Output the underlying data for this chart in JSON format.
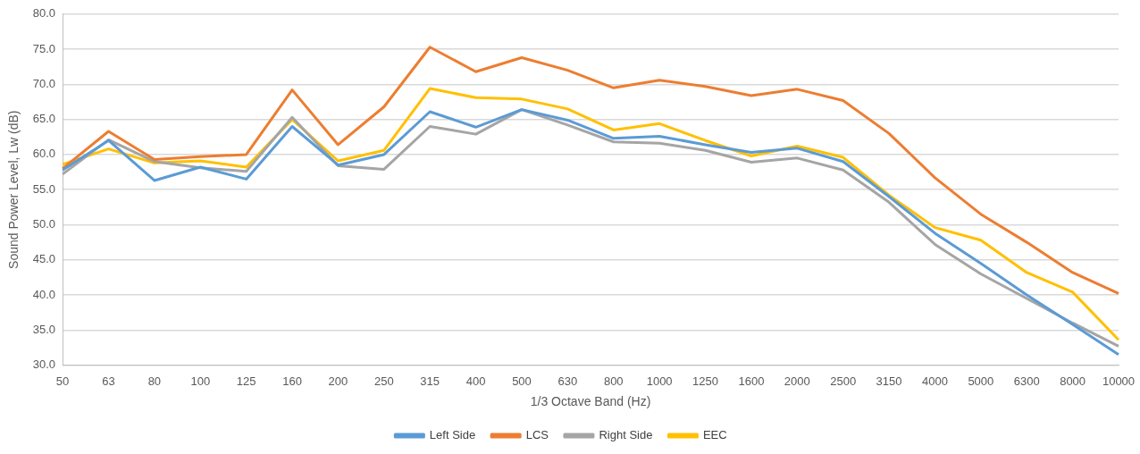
{
  "chart_data": {
    "type": "line",
    "xlabel": "1/3 Octave Band (Hz)",
    "ylabel": "Sound Power Level, Lw (dB)",
    "categories": [
      "50",
      "63",
      "80",
      "100",
      "125",
      "160",
      "200",
      "250",
      "315",
      "400",
      "500",
      "630",
      "800",
      "1000",
      "1250",
      "1600",
      "2000",
      "2500",
      "3150",
      "4000",
      "5000",
      "6300",
      "8000",
      "10000"
    ],
    "series": [
      {
        "name": "Left Side",
        "color": "#5b9bd5",
        "values": [
          57.8,
          62.0,
          56.3,
          58.2,
          56.5,
          64.0,
          58.5,
          60.0,
          66.1,
          63.9,
          66.4,
          64.9,
          62.3,
          62.6,
          61.4,
          60.3,
          60.9,
          59.0,
          54.0,
          48.8,
          44.5,
          40.0,
          35.8,
          31.5
        ]
      },
      {
        "name": "LCS",
        "color": "#ed7d31",
        "values": [
          58.0,
          63.3,
          59.3,
          59.7,
          60.0,
          69.2,
          61.4,
          66.8,
          75.3,
          71.8,
          73.8,
          72.0,
          69.5,
          70.6,
          69.7,
          68.4,
          69.3,
          67.7,
          63.0,
          56.7,
          51.5,
          47.5,
          43.2,
          40.2
        ]
      },
      {
        "name": "Right Side",
        "color": "#a5a5a5",
        "values": [
          57.2,
          62.1,
          59.0,
          58.1,
          57.6,
          65.3,
          58.4,
          57.9,
          64.0,
          62.9,
          66.4,
          64.2,
          61.8,
          61.6,
          60.6,
          58.9,
          59.5,
          57.8,
          53.2,
          47.2,
          43.0,
          39.5,
          36.0,
          32.7
        ]
      },
      {
        "name": "EEC",
        "color": "#ffc000",
        "values": [
          58.6,
          60.8,
          58.8,
          59.1,
          58.2,
          65.0,
          59.1,
          60.6,
          69.4,
          68.1,
          67.9,
          66.5,
          63.5,
          64.4,
          62.0,
          59.8,
          61.2,
          59.6,
          54.2,
          49.6,
          47.8,
          43.2,
          40.4,
          33.6
        ]
      }
    ],
    "ylim": [
      30,
      80
    ],
    "yticks": [
      {
        "value": 30,
        "label": "30.0"
      },
      {
        "value": 35,
        "label": "35.0"
      },
      {
        "value": 40,
        "label": "40.0"
      },
      {
        "value": 45,
        "label": "45.0"
      },
      {
        "value": 50,
        "label": "50.0"
      },
      {
        "value": 55,
        "label": "55.0"
      },
      {
        "value": 60,
        "label": "60.0"
      },
      {
        "value": 65,
        "label": "65.0"
      },
      {
        "value": 70,
        "label": "70.0"
      },
      {
        "value": 75,
        "label": "75.0"
      },
      {
        "value": 80,
        "label": "80.0"
      }
    ],
    "grid": "y",
    "legend": "bottom",
    "marker": "none",
    "line_style": "solid"
  }
}
